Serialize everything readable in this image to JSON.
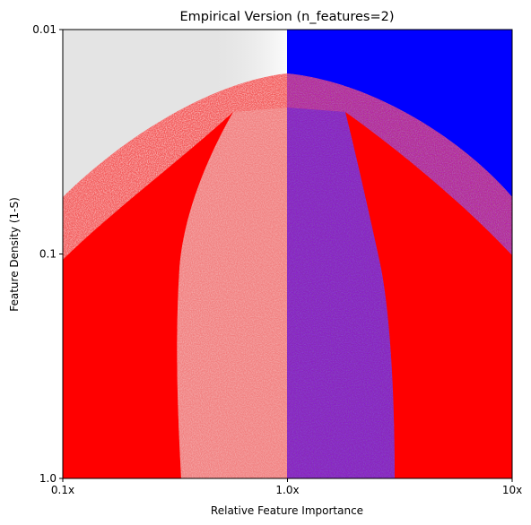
{
  "chart_data": {
    "type": "heatmap",
    "title": "Empirical Version (n_features=2)",
    "xlabel": "Relative Feature Importance",
    "ylabel": "Feature Density (1-S)",
    "x_scale": "log",
    "y_scale": "log",
    "xlim": [
      0.1,
      10
    ],
    "ylim": [
      1.0,
      0.01
    ],
    "x_ticks": [
      {
        "value": 0.1,
        "label": "0.1x"
      },
      {
        "value": 1.0,
        "label": "1.0x"
      },
      {
        "value": 10,
        "label": "10x"
      }
    ],
    "y_ticks": [
      {
        "value": 0.01,
        "label": "0.01"
      },
      {
        "value": 0.1,
        "label": "0.1"
      },
      {
        "value": 1.0,
        "label": "1.0"
      }
    ],
    "grid": false,
    "regions": [
      {
        "color": "#e4e4e4"
      },
      {
        "color": "#ff0000"
      },
      {
        "color": "#0000ff"
      }
    ]
  }
}
